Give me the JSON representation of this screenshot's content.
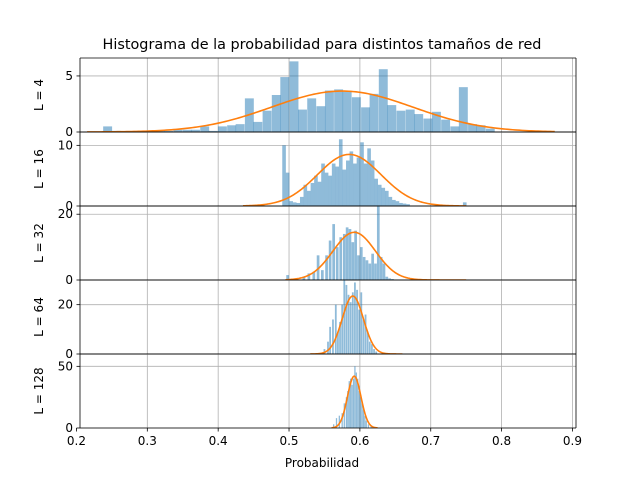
{
  "title": "Histograma de la probabilidad para distintos tamaños de red",
  "xlabel": "Probabilidad",
  "colors": {
    "histogram": "#1f77b4",
    "histogram_alpha": 0.5,
    "curve": "#ff7f0e",
    "grid": "#b0b0b0"
  },
  "chart_data": {
    "type": "bar",
    "layout": "vertical-stack",
    "grid": true,
    "shared_x": true,
    "xlim": [
      0.205,
      0.905
    ],
    "xticks": [
      0.2,
      0.3,
      0.4,
      0.5,
      0.6,
      0.7,
      0.8,
      0.9
    ],
    "xtick_labels": [
      "0.2",
      "0.3",
      "0.4",
      "0.5",
      "0.6",
      "0.7",
      "0.8",
      "0.9"
    ],
    "panels": [
      {
        "ylabel": "L = 4",
        "ylim": [
          0,
          6.6
        ],
        "yticks": [
          0,
          5
        ],
        "ytick_labels": [
          "0",
          "5"
        ],
        "bin_width": 0.0126,
        "bins": [
          [
            0.244,
            0.5
          ],
          [
            0.256,
            0.1
          ],
          [
            0.295,
            0.1
          ],
          [
            0.305,
            0.1
          ],
          [
            0.318,
            0.1
          ],
          [
            0.33,
            0.1
          ],
          [
            0.343,
            0.2
          ],
          [
            0.356,
            0.2
          ],
          [
            0.368,
            0.2
          ],
          [
            0.381,
            0.5
          ],
          [
            0.393,
            0.1
          ],
          [
            0.406,
            0.5
          ],
          [
            0.419,
            0.6
          ],
          [
            0.431,
            0.7
          ],
          [
            0.444,
            3.0
          ],
          [
            0.456,
            0.9
          ],
          [
            0.469,
            1.9
          ],
          [
            0.482,
            3.3
          ],
          [
            0.494,
            4.9
          ],
          [
            0.507,
            6.3
          ],
          [
            0.519,
            2.0
          ],
          [
            0.532,
            3.0
          ],
          [
            0.545,
            2.3
          ],
          [
            0.557,
            3.7
          ],
          [
            0.57,
            3.8
          ],
          [
            0.582,
            3.6
          ],
          [
            0.595,
            3.1
          ],
          [
            0.608,
            2.2
          ],
          [
            0.62,
            3.4
          ],
          [
            0.633,
            5.6
          ],
          [
            0.645,
            2.4
          ],
          [
            0.658,
            1.9
          ],
          [
            0.671,
            2.0
          ],
          [
            0.683,
            1.6
          ],
          [
            0.696,
            1.2
          ],
          [
            0.708,
            1.8
          ],
          [
            0.721,
            1.1
          ],
          [
            0.734,
            0.5
          ],
          [
            0.746,
            4.0
          ],
          [
            0.759,
            0.7
          ],
          [
            0.771,
            0.6
          ],
          [
            0.784,
            0.3
          ]
        ],
        "fit": {
          "mean": 0.575,
          "std": 0.1,
          "peak": 3.65,
          "x_range": [
            0.215,
            0.875
          ]
        }
      },
      {
        "ylabel": "L = 16",
        "ylim": [
          0,
          12.2
        ],
        "yticks": [
          0,
          10
        ],
        "ytick_labels": [
          "0",
          "10"
        ],
        "bin_width": 0.0051,
        "bins": [
          [
            0.493,
            10.0
          ],
          [
            0.498,
            5.5
          ],
          [
            0.503,
            0.8
          ],
          [
            0.508,
            0.6
          ],
          [
            0.513,
            0.5
          ],
          [
            0.518,
            1.5
          ],
          [
            0.523,
            3.5
          ],
          [
            0.528,
            2.5
          ],
          [
            0.533,
            3.8
          ],
          [
            0.538,
            5.0
          ],
          [
            0.543,
            4.0
          ],
          [
            0.548,
            7.0
          ],
          [
            0.553,
            5.5
          ],
          [
            0.558,
            5.0
          ],
          [
            0.563,
            7.0
          ],
          [
            0.568,
            6.5
          ],
          [
            0.573,
            11.0
          ],
          [
            0.578,
            6.0
          ],
          [
            0.583,
            7.5
          ],
          [
            0.588,
            9.0
          ],
          [
            0.593,
            7.0
          ],
          [
            0.598,
            8.0
          ],
          [
            0.603,
            10.5
          ],
          [
            0.608,
            7.0
          ],
          [
            0.613,
            9.5
          ],
          [
            0.618,
            7.5
          ],
          [
            0.623,
            4.5
          ],
          [
            0.628,
            3.5
          ],
          [
            0.633,
            3.0
          ],
          [
            0.638,
            2.5
          ],
          [
            0.643,
            1.5
          ],
          [
            0.648,
            1.0
          ],
          [
            0.653,
            0.8
          ],
          [
            0.658,
            0.5
          ],
          [
            0.663,
            0.4
          ],
          [
            0.668,
            0.3
          ],
          [
            0.748,
            0.6
          ]
        ],
        "fit": {
          "mean": 0.585,
          "std": 0.045,
          "peak": 8.5,
          "x_range": [
            0.435,
            0.75
          ]
        }
      },
      {
        "ylabel": "L = 32",
        "ylim": [
          0,
          22.5
        ],
        "yticks": [
          0,
          20
        ],
        "ytick_labels": [
          "0",
          "20"
        ],
        "bin_width": 0.0038,
        "bins": [
          [
            0.498,
            1.5
          ],
          [
            0.521,
            1.0
          ],
          [
            0.528,
            2.0
          ],
          [
            0.535,
            2.5
          ],
          [
            0.541,
            7.5
          ],
          [
            0.547,
            3.0
          ],
          [
            0.553,
            7.5
          ],
          [
            0.558,
            12.0
          ],
          [
            0.563,
            17.0
          ],
          [
            0.568,
            10.0
          ],
          [
            0.573,
            13.0
          ],
          [
            0.578,
            14.0
          ],
          [
            0.582,
            16.0
          ],
          [
            0.586,
            15.5
          ],
          [
            0.59,
            11.5
          ],
          [
            0.594,
            15.0
          ],
          [
            0.598,
            7.5
          ],
          [
            0.602,
            10.0
          ],
          [
            0.606,
            7.0
          ],
          [
            0.61,
            6.0
          ],
          [
            0.614,
            5.0
          ],
          [
            0.618,
            8.0
          ],
          [
            0.622,
            5.0
          ],
          [
            0.626,
            22.5
          ],
          [
            0.63,
            7.0
          ],
          [
            0.634,
            5.0
          ],
          [
            0.638,
            1.0
          ],
          [
            0.642,
            0.5
          ],
          [
            0.646,
            0.3
          ]
        ],
        "fit": {
          "mean": 0.592,
          "std": 0.03,
          "peak": 14.5,
          "x_range": [
            0.495,
            0.75
          ]
        }
      },
      {
        "ylabel": "L = 64",
        "ylim": [
          0,
          30
        ],
        "yticks": [
          0,
          20
        ],
        "ytick_labels": [
          "0",
          "20"
        ],
        "bin_width": 0.0025,
        "bins": [
          [
            0.55,
            2.0
          ],
          [
            0.555,
            5.0
          ],
          [
            0.558,
            11.0
          ],
          [
            0.562,
            14.0
          ],
          [
            0.566,
            20.0
          ],
          [
            0.569,
            9.0
          ],
          [
            0.572,
            13.0
          ],
          [
            0.575,
            20.0
          ],
          [
            0.578,
            30.0
          ],
          [
            0.581,
            28.0
          ],
          [
            0.584,
            24.0
          ],
          [
            0.587,
            21.0
          ],
          [
            0.59,
            25.0
          ],
          [
            0.593,
            29.0
          ],
          [
            0.596,
            26.0
          ],
          [
            0.599,
            18.0
          ],
          [
            0.602,
            25.0
          ],
          [
            0.605,
            14.0
          ],
          [
            0.608,
            16.0
          ],
          [
            0.611,
            9.0
          ],
          [
            0.614,
            5.0
          ],
          [
            0.617,
            4.0
          ],
          [
            0.62,
            2.0
          ],
          [
            0.623,
            1.0
          ]
        ],
        "fit": {
          "mean": 0.59,
          "std": 0.015,
          "peak": 23.5,
          "x_range": [
            0.53,
            0.66
          ]
        }
      },
      {
        "ylabel": "L = 128",
        "ylim": [
          0,
          60
        ],
        "yticks": [
          0,
          50
        ],
        "ytick_labels": [
          "0",
          "50"
        ],
        "bin_width": 0.0018,
        "bins": [
          [
            0.563,
            3.0
          ],
          [
            0.567,
            8.0
          ],
          [
            0.571,
            10.0
          ],
          [
            0.575,
            12.0
          ],
          [
            0.578,
            20.0
          ],
          [
            0.581,
            25.0
          ],
          [
            0.583,
            30.0
          ],
          [
            0.585,
            38.0
          ],
          [
            0.587,
            40.0
          ],
          [
            0.589,
            35.0
          ],
          [
            0.591,
            40.0
          ],
          [
            0.593,
            50.0
          ],
          [
            0.595,
            45.0
          ],
          [
            0.597,
            40.0
          ],
          [
            0.599,
            30.0
          ],
          [
            0.601,
            25.0
          ],
          [
            0.603,
            20.0
          ],
          [
            0.605,
            15.0
          ],
          [
            0.607,
            10.0
          ],
          [
            0.609,
            6.0
          ],
          [
            0.612,
            3.0
          ],
          [
            0.616,
            2.0
          ]
        ],
        "fit": {
          "mean": 0.592,
          "std": 0.0095,
          "peak": 42.0,
          "x_range": [
            0.56,
            0.625
          ]
        }
      }
    ]
  }
}
